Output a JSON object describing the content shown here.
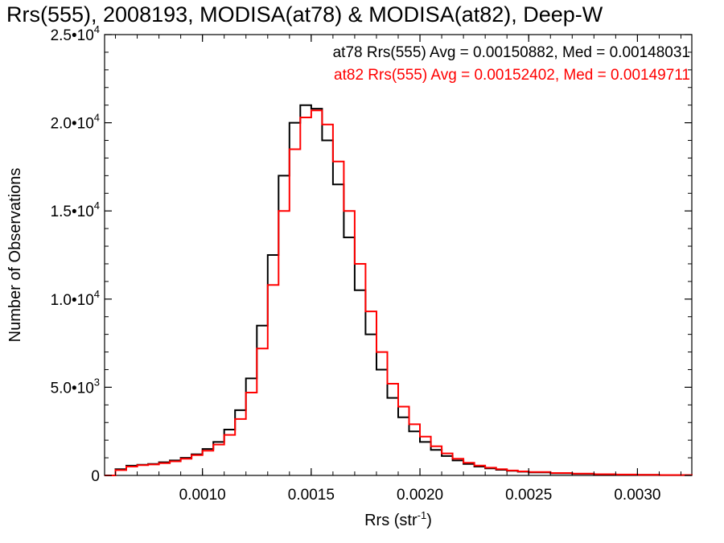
{
  "chart_data": {
    "type": "line",
    "title": "Rrs(555), 2008193, MODISA(at78) & MODISA(at82), Deep-W",
    "xlabel": "Rrs (str",
    "xlabel_sup": "-1",
    "xlabel_end": ")",
    "ylabel": "Number of Observations",
    "xlim": [
      0.00055,
      0.00325
    ],
    "ylim": [
      0,
      25000
    ],
    "x_ticks": [
      {
        "value": 0.001,
        "label": "0.0010"
      },
      {
        "value": 0.0015,
        "label": "0.0015"
      },
      {
        "value": 0.002,
        "label": "0.0020"
      },
      {
        "value": 0.0025,
        "label": "0.0025"
      },
      {
        "value": 0.003,
        "label": "0.0030"
      }
    ],
    "y_ticks": [
      {
        "value": 0,
        "mant": "0",
        "exp": ""
      },
      {
        "value": 5000,
        "mant": "5.0•10",
        "exp": "3"
      },
      {
        "value": 10000,
        "mant": "1.0•10",
        "exp": "4"
      },
      {
        "value": 15000,
        "mant": "1.5•10",
        "exp": "4"
      },
      {
        "value": 20000,
        "mant": "2.0•10",
        "exp": "4"
      },
      {
        "value": 25000,
        "mant": "2.5•10",
        "exp": "4"
      }
    ],
    "annotations": [
      {
        "text": "at78 Rrs(555) Avg = 0.00150882, Med = 0.00148031",
        "color": "#000000"
      },
      {
        "text": "at82 Rrs(555) Avg = 0.00152402, Med = 0.00149711",
        "color": "#ff0000"
      }
    ],
    "series": [
      {
        "color": "#000000",
        "points": [
          [
            0.00055,
            0
          ],
          [
            0.0006,
            350
          ],
          [
            0.00065,
            550
          ],
          [
            0.0007,
            600
          ],
          [
            0.00075,
            650
          ],
          [
            0.0008,
            750
          ],
          [
            0.00085,
            850
          ],
          [
            0.0009,
            1000
          ],
          [
            0.00095,
            1200
          ],
          [
            0.001,
            1500
          ],
          [
            0.00105,
            1900
          ],
          [
            0.0011,
            2600
          ],
          [
            0.00115,
            3700
          ],
          [
            0.0012,
            5500
          ],
          [
            0.00125,
            8500
          ],
          [
            0.0013,
            12500
          ],
          [
            0.00135,
            17000
          ],
          [
            0.0014,
            20000
          ],
          [
            0.00145,
            21000
          ],
          [
            0.0015,
            20800
          ],
          [
            0.00155,
            19000
          ],
          [
            0.0016,
            16500
          ],
          [
            0.00165,
            13500
          ],
          [
            0.0017,
            10500
          ],
          [
            0.00175,
            8000
          ],
          [
            0.0018,
            6000
          ],
          [
            0.00185,
            4400
          ],
          [
            0.0019,
            3300
          ],
          [
            0.00195,
            2500
          ],
          [
            0.002,
            1900
          ],
          [
            0.00205,
            1450
          ],
          [
            0.0021,
            1100
          ],
          [
            0.00215,
            850
          ],
          [
            0.0022,
            650
          ],
          [
            0.00225,
            500
          ],
          [
            0.0023,
            400
          ],
          [
            0.00235,
            320
          ],
          [
            0.0024,
            260
          ],
          [
            0.00245,
            210
          ],
          [
            0.0025,
            170
          ],
          [
            0.0026,
            120
          ],
          [
            0.0027,
            90
          ],
          [
            0.0028,
            60
          ],
          [
            0.0029,
            45
          ],
          [
            0.003,
            30
          ],
          [
            0.0031,
            20
          ],
          [
            0.00325,
            10
          ]
        ]
      },
      {
        "color": "#ff0000",
        "points": [
          [
            0.00055,
            0
          ],
          [
            0.0006,
            300
          ],
          [
            0.00065,
            500
          ],
          [
            0.0007,
            580
          ],
          [
            0.00075,
            620
          ],
          [
            0.0008,
            700
          ],
          [
            0.00085,
            800
          ],
          [
            0.0009,
            950
          ],
          [
            0.00095,
            1150
          ],
          [
            0.001,
            1400
          ],
          [
            0.00105,
            1750
          ],
          [
            0.0011,
            2300
          ],
          [
            0.00115,
            3200
          ],
          [
            0.0012,
            4700
          ],
          [
            0.00125,
            7200
          ],
          [
            0.0013,
            10800
          ],
          [
            0.00135,
            15000
          ],
          [
            0.0014,
            18500
          ],
          [
            0.00145,
            20300
          ],
          [
            0.0015,
            20700
          ],
          [
            0.00155,
            19900
          ],
          [
            0.0016,
            17800
          ],
          [
            0.00165,
            15000
          ],
          [
            0.0017,
            12000
          ],
          [
            0.00175,
            9300
          ],
          [
            0.0018,
            7000
          ],
          [
            0.00185,
            5200
          ],
          [
            0.0019,
            3900
          ],
          [
            0.00195,
            2900
          ],
          [
            0.002,
            2200
          ],
          [
            0.00205,
            1650
          ],
          [
            0.0021,
            1250
          ],
          [
            0.00215,
            950
          ],
          [
            0.0022,
            720
          ],
          [
            0.00225,
            560
          ],
          [
            0.0023,
            440
          ],
          [
            0.00235,
            350
          ],
          [
            0.0024,
            280
          ],
          [
            0.00245,
            230
          ],
          [
            0.0025,
            190
          ],
          [
            0.0026,
            135
          ],
          [
            0.0027,
            100
          ],
          [
            0.0028,
            70
          ],
          [
            0.0029,
            50
          ],
          [
            0.003,
            35
          ],
          [
            0.0031,
            22
          ],
          [
            0.00325,
            12
          ]
        ]
      }
    ]
  }
}
